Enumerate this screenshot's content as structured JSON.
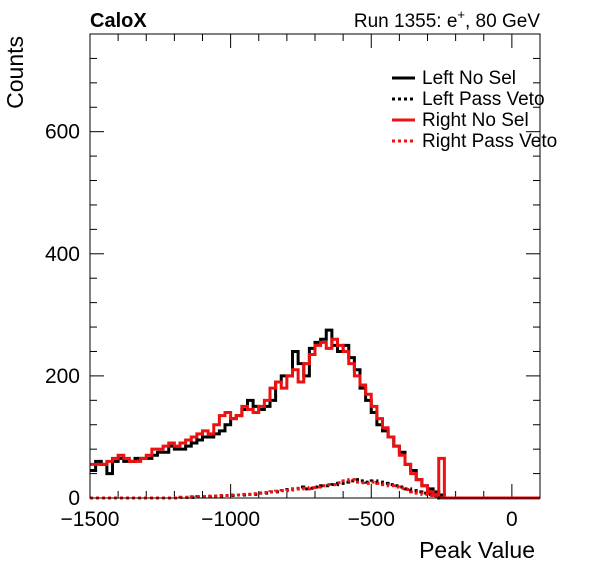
{
  "header": {
    "left_title": "CaloX",
    "run_title_main": "Run 1355: e",
    "run_title_sup": "+",
    "run_title_tail": ", 80 GeV"
  },
  "chart_data": {
    "type": "line",
    "style": "step-histogram",
    "title": "",
    "xlabel": "Peak Value",
    "ylabel": "Counts",
    "xlim": [
      -1500,
      100
    ],
    "ylim": [
      0,
      760
    ],
    "x_ticks": [
      -1500,
      -1000,
      -500,
      0
    ],
    "x_tick_labels": [
      "−1500",
      "−1000",
      "−500",
      "0"
    ],
    "y_ticks": [
      0,
      200,
      400,
      600
    ],
    "y_tick_labels": [
      "0",
      "200",
      "400",
      "600"
    ],
    "bin_width": 20,
    "bin_edges_start": -1500,
    "legend_position": "top-right",
    "colors": {
      "left": "#000000",
      "right": "#ee1111"
    },
    "series": [
      {
        "name": "Left No Sel",
        "color": "#000000",
        "dash": "solid",
        "values": [
          45,
          60,
          55,
          40,
          60,
          65,
          60,
          60,
          65,
          65,
          65,
          70,
          75,
          75,
          85,
          80,
          80,
          85,
          90,
          95,
          100,
          100,
          105,
          110,
          120,
          130,
          135,
          145,
          160,
          150,
          145,
          150,
          160,
          190,
          200,
          200,
          240,
          220,
          200,
          245,
          255,
          260,
          275,
          250,
          240,
          250,
          230,
          210,
          180,
          160,
          140,
          120,
          110,
          100,
          85,
          75,
          55,
          45,
          30,
          20,
          15,
          10,
          5,
          0,
          0,
          0,
          0,
          0,
          0,
          0,
          0,
          0,
          0,
          0,
          0,
          0,
          0,
          0,
          0,
          0
        ]
      },
      {
        "name": "Left Pass Veto",
        "color": "#000000",
        "dash": "dashed",
        "values": [
          0,
          0,
          0,
          0,
          0,
          0,
          0,
          0,
          0,
          0,
          0,
          0,
          0,
          0,
          0,
          0,
          1,
          1,
          1,
          2,
          2,
          2,
          3,
          3,
          4,
          4,
          5,
          5,
          6,
          6,
          8,
          8,
          10,
          10,
          12,
          14,
          15,
          18,
          15,
          16,
          18,
          20,
          20,
          22,
          24,
          26,
          28,
          30,
          28,
          26,
          28,
          26,
          24,
          22,
          20,
          18,
          15,
          12,
          10,
          8,
          6,
          4,
          0,
          0,
          0,
          0,
          0,
          0,
          0,
          0,
          0,
          0,
          0,
          0,
          0,
          0,
          0,
          0,
          0,
          0
        ]
      },
      {
        "name": "Right No Sel",
        "color": "#ee1111",
        "dash": "solid",
        "values": [
          55,
          55,
          55,
          60,
          65,
          70,
          65,
          60,
          60,
          65,
          70,
          80,
          80,
          85,
          90,
          85,
          90,
          95,
          100,
          105,
          110,
          105,
          120,
          135,
          140,
          130,
          135,
          150,
          145,
          140,
          150,
          160,
          180,
          190,
          180,
          200,
          210,
          190,
          220,
          235,
          250,
          255,
          245,
          260,
          250,
          240,
          220,
          200,
          185,
          170,
          150,
          130,
          115,
          100,
          85,
          70,
          55,
          40,
          30,
          20,
          10,
          5,
          65,
          0,
          0,
          0,
          0,
          0,
          0,
          0,
          0,
          0,
          0,
          0,
          0,
          0,
          0,
          0,
          0,
          0
        ]
      },
      {
        "name": "Right Pass Veto",
        "color": "#ee1111",
        "dash": "dashed",
        "values": [
          0,
          0,
          0,
          0,
          0,
          0,
          0,
          0,
          0,
          0,
          0,
          0,
          0,
          0,
          0,
          0,
          1,
          1,
          2,
          2,
          2,
          3,
          3,
          4,
          4,
          5,
          5,
          6,
          6,
          7,
          8,
          9,
          10,
          11,
          12,
          13,
          15,
          16,
          15,
          17,
          18,
          20,
          22,
          22,
          25,
          28,
          30,
          26,
          25,
          24,
          26,
          24,
          22,
          20,
          18,
          16,
          14,
          10,
          8,
          6,
          4,
          2,
          0,
          0,
          0,
          0,
          0,
          0,
          0,
          0,
          0,
          0,
          0,
          0,
          0,
          0,
          0,
          0,
          0,
          0
        ]
      }
    ]
  }
}
